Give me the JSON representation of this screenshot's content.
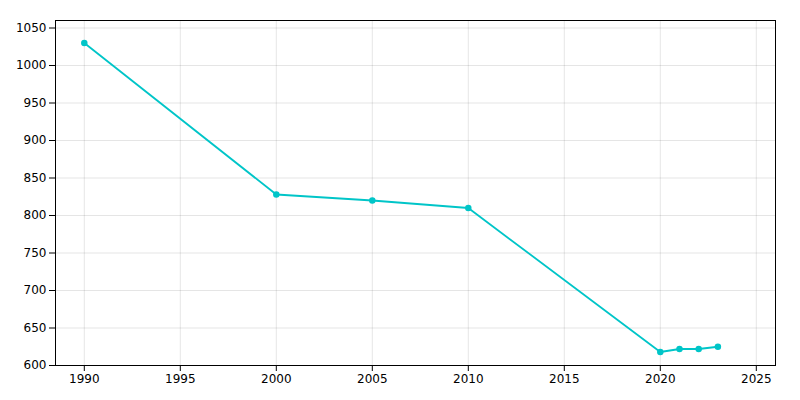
{
  "chart_data": {
    "type": "line",
    "x": [
      1990,
      2000,
      2005,
      2010,
      2020,
      2021,
      2022,
      2023
    ],
    "values": [
      1030,
      828,
      820,
      810,
      618,
      622,
      622,
      625
    ],
    "color": "#00C5C8",
    "marker": "circle",
    "xlim": [
      1988.5,
      2026
    ],
    "ylim": [
      600,
      1060
    ],
    "xticks": [
      1990,
      1995,
      2000,
      2005,
      2010,
      2015,
      2020,
      2025
    ],
    "yticks": [
      600,
      650,
      700,
      750,
      800,
      850,
      900,
      950,
      1000,
      1050
    ],
    "grid": true
  }
}
